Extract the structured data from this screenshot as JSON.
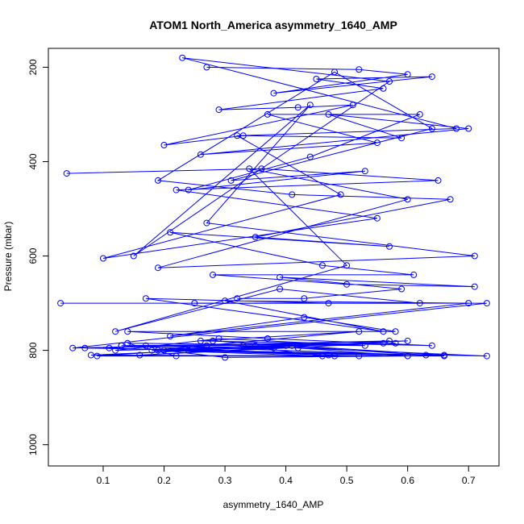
{
  "chart_data": {
    "type": "line",
    "title": "ATOM1 North_America asymmetry_1640_AMP",
    "xlabel": "asymmetry_1640_AMP",
    "ylabel": "Pressure (mbar)",
    "xlim": [
      0.01,
      0.75
    ],
    "ylim": [
      1045,
      160
    ],
    "y_inverted": true,
    "x_ticks": [
      0.1,
      0.2,
      0.3,
      0.4,
      0.5,
      0.6,
      0.7
    ],
    "x_tick_labels": [
      "0.1",
      "0.2",
      "0.3",
      "0.4",
      "0.5",
      "0.6",
      "0.7"
    ],
    "y_ticks": [
      200,
      400,
      600,
      800,
      1000
    ],
    "y_tick_labels": [
      "200",
      "400",
      "600",
      "800",
      "1000"
    ],
    "grid": false,
    "markers": "open-circle",
    "series": [
      {
        "color": "#0000ff",
        "x": [
          0.04,
          0.36,
          0.65,
          0.22,
          0.55,
          0.1,
          0.49,
          0.32,
          0.68,
          0.23,
          0.57,
          0.15,
          0.44,
          0.27,
          0.71,
          0.19,
          0.6,
          0.34,
          0.5,
          0.12,
          0.39,
          0.62,
          0.25,
          0.47,
          0.17,
          0.56,
          0.3,
          0.7,
          0.21,
          0.43,
          0.58,
          0.14,
          0.37,
          0.64,
          0.26,
          0.52,
          0.18,
          0.41,
          0.66,
          0.24
        ],
        "y": [
          425,
          415,
          440,
          460,
          520,
          605,
          470,
          345,
          330,
          180,
          230,
          600,
          280,
          530,
          600,
          625,
          480,
          415,
          620,
          760,
          670,
          700,
          700,
          700,
          690,
          760,
          695,
          700,
          770,
          730,
          760,
          760,
          775,
          790,
          780,
          760,
          800,
          790,
          810,
          800
        ]
      },
      {
        "color": "#0000ff",
        "x": [
          0.03,
          0.73,
          0.05,
          0.6,
          0.08,
          0.52,
          0.11,
          0.47,
          0.13,
          0.56,
          0.16,
          0.38,
          0.2,
          0.3,
          0.6,
          0.09,
          0.35,
          0.58,
          0.12,
          0.29,
          0.53,
          0.14,
          0.22,
          0.48,
          0.66,
          0.17,
          0.4,
          0.28,
          0.63,
          0.19,
          0.46,
          0.33,
          0.73,
          0.07,
          0.57,
          0.27,
          0.13,
          0.42,
          0.6,
          0.24
        ],
        "y": [
          700,
          700,
          795,
          780,
          810,
          812,
          795,
          810,
          790,
          785,
          810,
          795,
          800,
          815,
          812,
          812,
          790,
          785,
          800,
          775,
          790,
          785,
          812,
          812,
          812,
          790,
          790,
          780,
          810,
          800,
          812,
          790,
          812,
          795,
          780,
          790,
          790,
          795,
          812,
          800
        ]
      },
      {
        "color": "#0000ff",
        "x": [
          0.27,
          0.52,
          0.6,
          0.38,
          0.64,
          0.45,
          0.56,
          0.29,
          0.42,
          0.51,
          0.2,
          0.33,
          0.59,
          0.47,
          0.7,
          0.26,
          0.55,
          0.37,
          0.62,
          0.44,
          0.24,
          0.53,
          0.31,
          0.64,
          0.48,
          0.19,
          0.41,
          0.67,
          0.35,
          0.57,
          0.21,
          0.46,
          0.61,
          0.28,
          0.5,
          0.71,
          0.39,
          0.59,
          0.43,
          0.32
        ],
        "y": [
          200,
          205,
          215,
          255,
          220,
          225,
          245,
          290,
          285,
          280,
          365,
          345,
          350,
          300,
          330,
          385,
          360,
          300,
          300,
          390,
          460,
          420,
          440,
          330,
          210,
          440,
          470,
          480,
          560,
          580,
          550,
          620,
          640,
          640,
          660,
          665,
          645,
          670,
          690,
          690
        ]
      }
    ]
  }
}
